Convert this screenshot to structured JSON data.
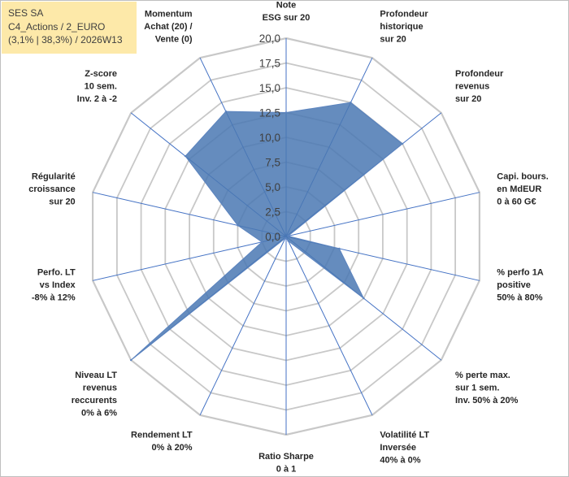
{
  "header": {
    "line1": "SES SA",
    "line2": "C4_Actions / 2_EURO",
    "line3": "(3,1% | 38,3%) / 2026W13"
  },
  "colors": {
    "fill": "#4a78b3",
    "stroke": "#5c84bf",
    "grid": "#c8c8c8",
    "spoke": "#4472c4",
    "title_bg": "#fde9a9"
  },
  "chart_data": {
    "type": "radar",
    "axis_range": [
      0,
      20
    ],
    "tick_step": 2.5,
    "tick_labels": [
      "0,0",
      "2,5",
      "5,0",
      "7,5",
      "10,0",
      "12,5",
      "15,0",
      "17,5",
      "20,0"
    ],
    "axes": [
      {
        "label": [
          "Note",
          "ESG sur 20"
        ],
        "value": 12.5
      },
      {
        "label": [
          "Profondeur",
          "historique",
          "sur 20"
        ],
        "value": 15.0
      },
      {
        "label": [
          "Profondeur",
          "revenus",
          "sur 20"
        ],
        "value": 15.0
      },
      {
        "label": [
          "Capi. bours.",
          "en MdEUR",
          "0 à 60 G€"
        ],
        "value": 0.2
      },
      {
        "label": [
          "% perfo 1A",
          "positive",
          "50% à 80%"
        ],
        "value": 5.5
      },
      {
        "label": [
          "% perte max.",
          "sur 1 sem.",
          "Inv. 50% à 20%"
        ],
        "value": 10.0
      },
      {
        "label": [
          "Volatilité LT",
          "Inversée",
          "40% à 0%"
        ],
        "value": 0.5
      },
      {
        "label": [
          "Ratio Sharpe",
          "0 à 1"
        ],
        "value": 0.2
      },
      {
        "label": [
          "Rendement LT",
          "0% à 20%"
        ],
        "value": 0.2
      },
      {
        "label": [
          "Niveau LT",
          "revenus",
          "reccurents",
          "0% à 6%"
        ],
        "value": 20.0
      },
      {
        "label": [
          "Perfo. LT",
          "vs Index",
          "-8% à 12%"
        ],
        "value": 2.5
      },
      {
        "label": [
          "Régularité",
          "croissance",
          "sur 20"
        ],
        "value": 5.0
      },
      {
        "label": [
          "Z-score",
          "10 sem.",
          "Inv. 2 à -2"
        ],
        "value": 13.0
      },
      {
        "label": [
          "Momentum",
          "Achat (20) /",
          "Vente (0)"
        ],
        "value": 14.0
      }
    ]
  }
}
